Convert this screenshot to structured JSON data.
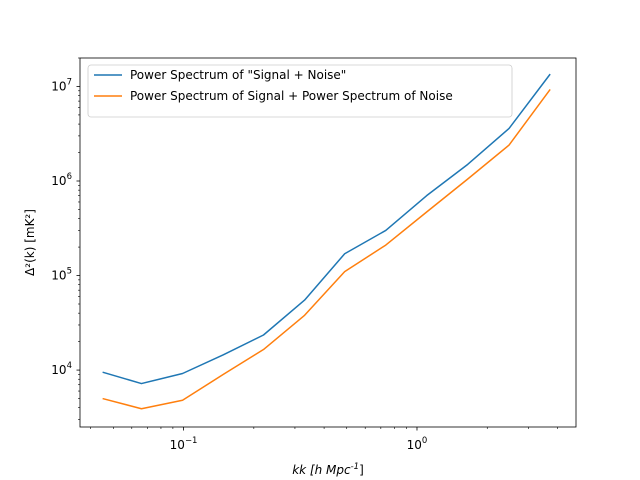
{
  "chart_data": {
    "type": "line",
    "xscale": "log",
    "yscale": "log",
    "xlabel": {
      "prefix": "k [h Mpc",
      "sup": "-1",
      "suffix": "]"
    },
    "ylabel": {
      "text": "Δ²(k) [mK²]"
    },
    "xlim": [
      0.036,
      4.8
    ],
    "ylim": [
      2500,
      20000000
    ],
    "x_ticks": [
      {
        "value": 0.1,
        "base": "10",
        "exp": "−1"
      },
      {
        "value": 1,
        "base": "10",
        "exp": "0"
      }
    ],
    "y_ticks": [
      {
        "value": 10000,
        "base": "10",
        "exp": "4"
      },
      {
        "value": 100000,
        "base": "10",
        "exp": "5"
      },
      {
        "value": 1000000,
        "base": "10",
        "exp": "6"
      },
      {
        "value": 10000000,
        "base": "10",
        "exp": "7"
      }
    ],
    "legend_position": "top-left",
    "grid": false,
    "series": [
      {
        "name": "Power Spectrum of \"Signal + Noise\"",
        "color": "#1f77b4",
        "x": [
          0.045,
          0.066,
          0.099,
          0.148,
          0.22,
          0.33,
          0.49,
          0.735,
          1.1,
          1.65,
          2.48,
          3.72
        ],
        "y": [
          9500,
          7200,
          9200,
          14500,
          23500,
          55000,
          170000,
          300000,
          700000,
          1500000,
          3600000,
          13500000
        ]
      },
      {
        "name": "Power Spectrum of Signal + Power Spectrum of Noise",
        "color": "#ff7f0e",
        "x": [
          0.045,
          0.066,
          0.099,
          0.148,
          0.22,
          0.33,
          0.49,
          0.735,
          1.1,
          1.65,
          2.48,
          3.72
        ],
        "y": [
          5000,
          3900,
          4800,
          9000,
          16500,
          38000,
          110000,
          210000,
          470000,
          1050000,
          2400000,
          9300000
        ]
      }
    ]
  }
}
